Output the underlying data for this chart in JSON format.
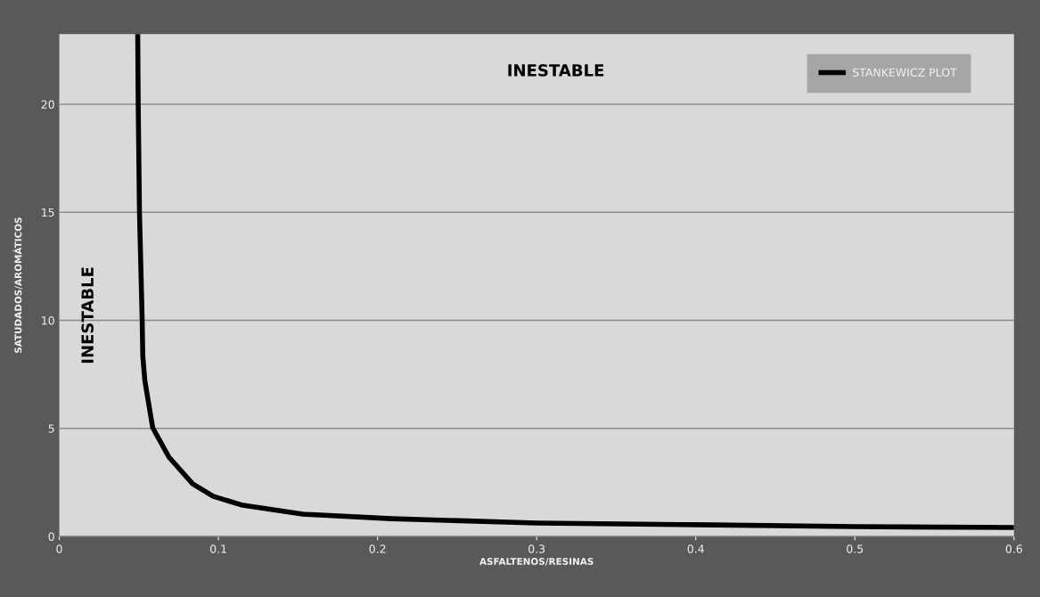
{
  "chart_data": {
    "type": "line",
    "xlabel": "ASFALTENOS/RESINAS",
    "ylabel": "SATUDADOS/AROMÁTICOS",
    "xlim": [
      0,
      0.6
    ],
    "xticks": [
      0,
      0.1,
      0.2,
      0.3,
      0.4,
      0.5,
      0.6
    ],
    "ylim": [
      0,
      23.25
    ],
    "yticks": [
      0,
      5,
      10,
      15,
      20
    ],
    "grid": "y",
    "legend": "top right",
    "marker": "none",
    "line_style": "solid",
    "annotations": [
      "INESTABLE",
      "INESTABLE"
    ],
    "series": [
      {
        "name": "STANKEWICZ PLOT",
        "color": "#000000",
        "x": [
          0.0493,
          0.0496,
          0.0504,
          0.0521,
          0.0525,
          0.0538,
          0.0587,
          0.0689,
          0.0839,
          0.0969,
          0.1154,
          0.153,
          0.209,
          0.3,
          0.4,
          0.5,
          0.6
        ],
        "values": [
          23.25,
          20,
          15,
          10,
          8.33,
          7.2,
          5.03,
          3.67,
          2.43,
          1.85,
          1.44,
          1.03,
          0.82,
          0.62,
          0.54,
          0.45,
          0.41
        ]
      }
    ]
  }
}
